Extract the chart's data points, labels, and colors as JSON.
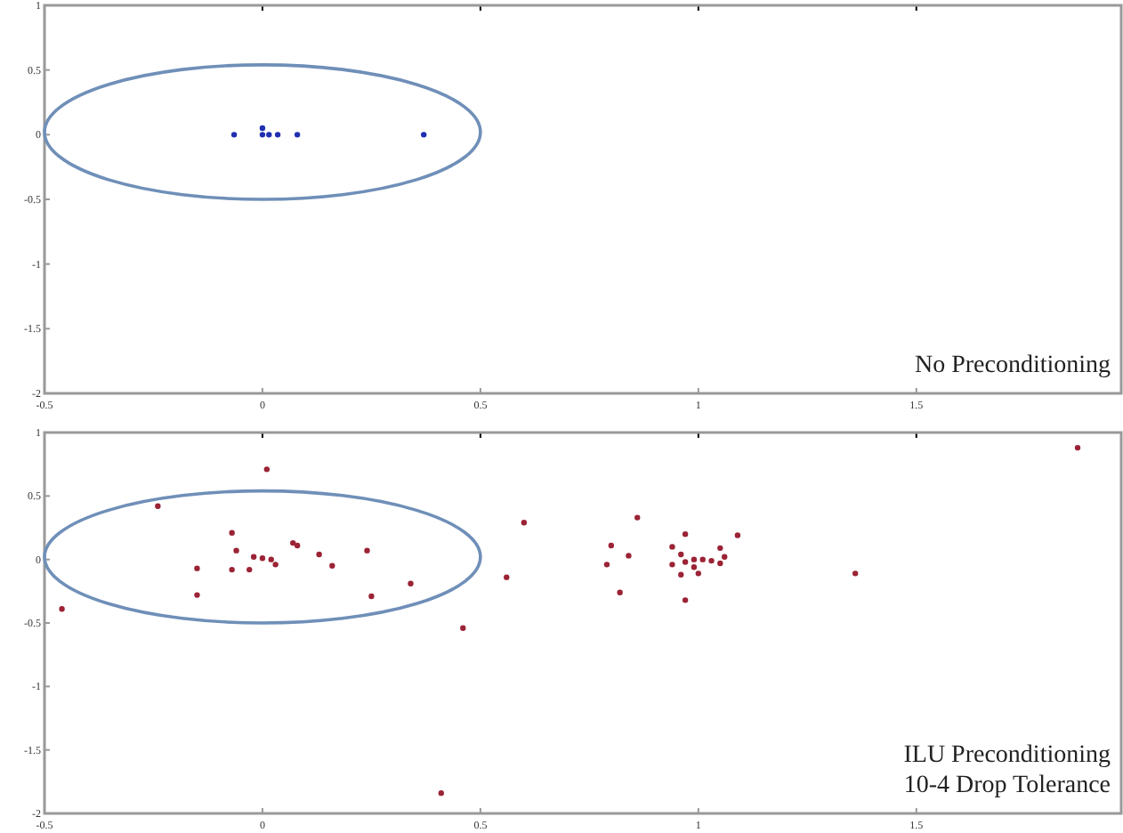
{
  "chart_data": [
    {
      "type": "scatter",
      "marker": "circle",
      "grid": false,
      "xlim": [
        -0.5,
        1.97
      ],
      "xticks": [
        -0.5,
        0,
        0.5,
        1,
        1.5
      ],
      "ylim": [
        -2,
        1
      ],
      "yticks": [
        -2,
        -1.5,
        -1,
        -0.5,
        0,
        0.5,
        1
      ],
      "annotations": [
        "No Preconditioning"
      ],
      "series": [
        {
          "color": "#1f2fb0",
          "x": [
            -0.065,
            0,
            0,
            0.015,
            0.035,
            0.08,
            0.37
          ],
          "values": [
            0,
            0,
            0.05,
            0,
            0,
            0,
            0
          ]
        }
      ]
    },
    {
      "type": "scatter",
      "marker": "circle",
      "grid": false,
      "xlim": [
        -0.5,
        1.97
      ],
      "xticks": [
        -0.5,
        0,
        0.5,
        1,
        1.5
      ],
      "ylim": [
        -2,
        1
      ],
      "yticks": [
        -2,
        -1.5,
        -1,
        -0.5,
        0,
        0.5,
        1
      ],
      "annotations": [
        "ILU Preconditioning\n10-4 Drop Tolerance"
      ],
      "series": [
        {
          "color": "#9b2335",
          "x": [
            -0.46,
            -0.24,
            0.01,
            -0.07,
            -0.06,
            -0.15,
            -0.15,
            -0.07,
            -0.03,
            -0.02,
            0,
            0.02,
            0.03,
            0.07,
            0.08,
            0.13,
            0.16,
            0.24,
            0.25,
            0.34,
            0.46,
            0.56,
            0.6,
            0.41,
            0.86,
            0.8,
            0.79,
            0.84,
            0.82,
            0.97,
            0.94,
            0.96,
            0.94,
            0.97,
            0.96,
            0.97,
            0.99,
            1.01,
            1.03,
            1.05,
            1.0,
            0.99,
            1.05,
            1.06,
            1.09,
            1.36,
            1.87
          ],
          "values": [
            -0.39,
            0.42,
            0.71,
            0.21,
            0.07,
            -0.07,
            -0.28,
            -0.08,
            -0.08,
            0.02,
            0.01,
            0,
            -0.04,
            0.13,
            0.11,
            0.04,
            -0.05,
            0.07,
            -0.29,
            -0.19,
            -0.54,
            -0.14,
            0.29,
            -1.84,
            0.33,
            0.11,
            -0.04,
            0.03,
            -0.26,
            0.2,
            0.1,
            0.04,
            -0.04,
            -0.02,
            -0.12,
            -0.32,
            0,
            0,
            -0.01,
            -0.03,
            -0.11,
            -0.06,
            0.09,
            0.02,
            0.19,
            -0.11,
            0.88
          ]
        }
      ]
    }
  ]
}
